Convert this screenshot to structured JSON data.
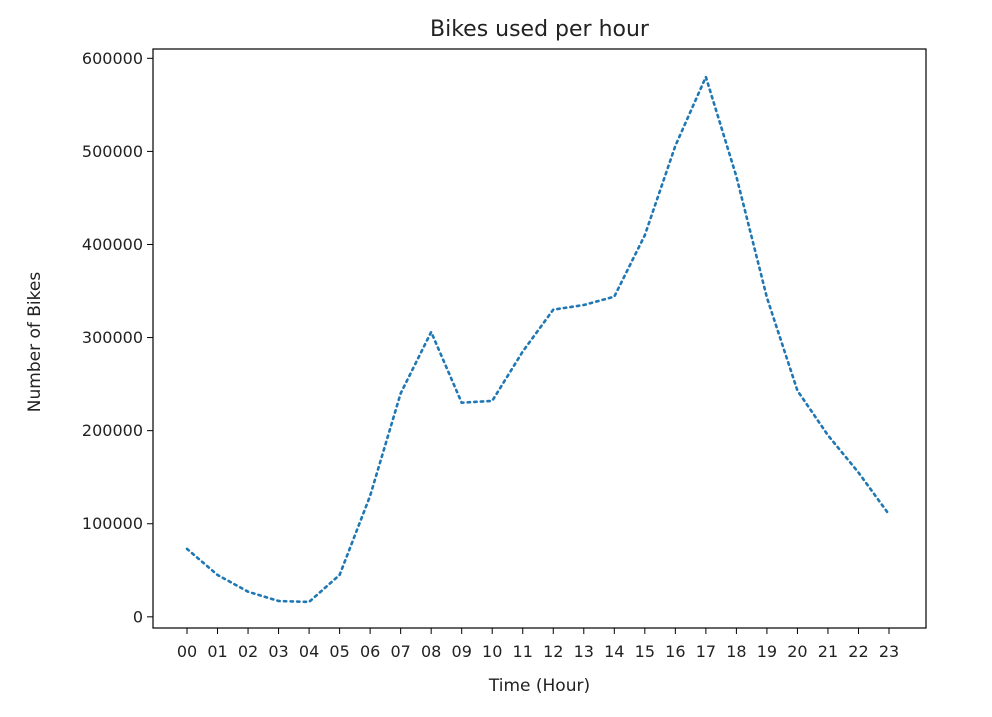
{
  "chart_data": {
    "type": "line",
    "title": "Bikes used per hour",
    "xlabel": "Time (Hour)",
    "ylabel": "Number of Bikes",
    "categories": [
      "00",
      "01",
      "02",
      "03",
      "04",
      "05",
      "06",
      "07",
      "08",
      "09",
      "10",
      "11",
      "12",
      "13",
      "14",
      "15",
      "16",
      "17",
      "18",
      "19",
      "20",
      "21",
      "22",
      "23"
    ],
    "series": [
      {
        "values": [
          73000,
          45000,
          27000,
          17000,
          16000,
          45000,
          130000,
          240000,
          306000,
          230000,
          232000,
          285000,
          330000,
          335000,
          344000,
          410000,
          506000,
          580000,
          473000,
          343000,
          243000,
          195000,
          155000,
          110000
        ],
        "color": "#1f77b4",
        "line_style": "dotted"
      }
    ],
    "ylim": [
      -12000,
      610000
    ],
    "yticks": [
      0,
      100000,
      200000,
      300000,
      400000,
      500000,
      600000
    ],
    "ytick_labels": [
      "0",
      "100000",
      "200000",
      "300000",
      "400000",
      "500000",
      "600000"
    ],
    "grid": false,
    "legend": false
  }
}
